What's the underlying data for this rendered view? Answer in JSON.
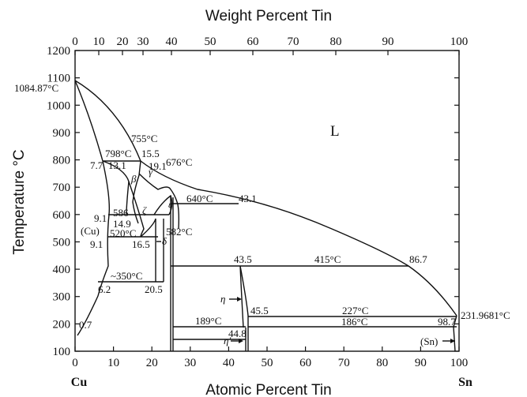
{
  "diagram": {
    "top_axis_title": "Weight Percent Tin",
    "bottom_axis_title": "Atomic Percent Tin",
    "y_axis_title": "Temperature °C",
    "left_endpoint": "Cu",
    "right_endpoint": "Sn",
    "bottom_ticks": [
      "0",
      "10",
      "20",
      "30",
      "40",
      "50",
      "60",
      "70",
      "80",
      "90",
      "100"
    ],
    "top_ticks": [
      "0",
      "10",
      "20",
      "30",
      "40",
      "50",
      "60",
      "70",
      "80",
      "90",
      "100"
    ],
    "y_ticks": [
      "100",
      "200",
      "300",
      "400",
      "500",
      "600",
      "700",
      "800",
      "900",
      "1000",
      "1100",
      "1200"
    ],
    "phases": {
      "L": "L",
      "cu": "(Cu)",
      "sn": "(Sn)",
      "beta": "β",
      "gamma": "γ",
      "zeta": "ζ",
      "delta": "δ",
      "epsilon": "ε",
      "eta": "η",
      "eta_prime": "η′"
    },
    "annotations": {
      "t1084": "1084.87°C",
      "t755": "755°C",
      "t798": "798°C",
      "c155": "15.5",
      "c77": "7.7",
      "c131": "13.1",
      "c191": "19.1",
      "t676": "676°C",
      "t640": "640°C",
      "c431": "43.1",
      "c91a": "9.1",
      "c586": "586",
      "c149": "14.9",
      "t520": "520°C",
      "t582": "582°C",
      "c91b": "9.1",
      "c165": "16.5",
      "c435": "43.5",
      "t415": "415°C",
      "c867": "86.7",
      "t350": "~350°C",
      "c62": "6.2",
      "c205": "20.5",
      "c455": "45.5",
      "t227": "227°C",
      "t189": "189°C",
      "t186": "186°C",
      "c987": "98.7",
      "t2319": "231.9681°C",
      "c07": "0.7",
      "c448": "44.8"
    }
  }
}
